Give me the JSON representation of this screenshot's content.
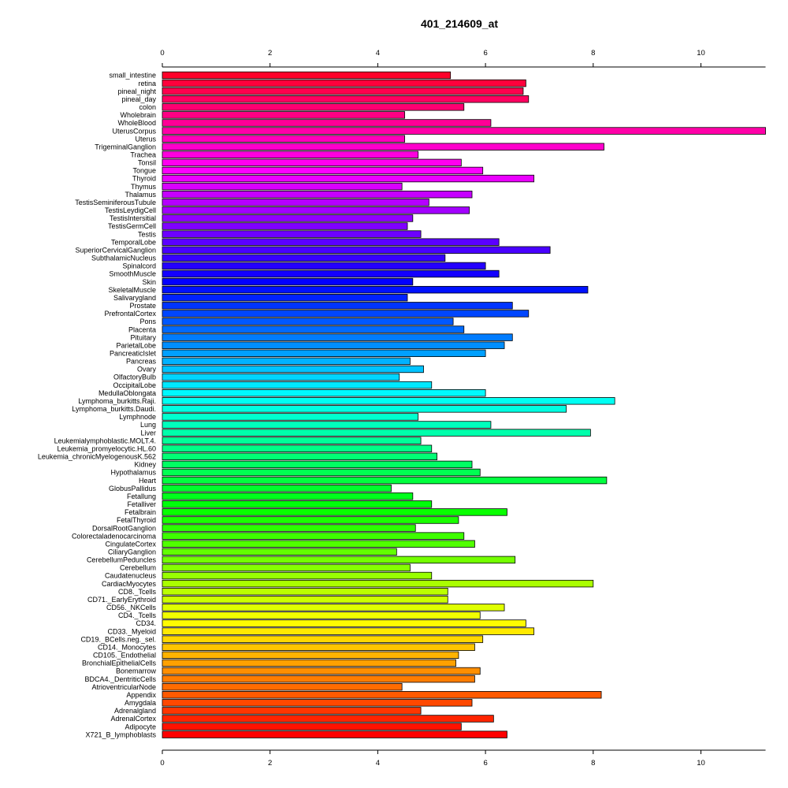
{
  "chart_data": {
    "type": "bar",
    "orientation": "horizontal",
    "title": "401_214609_at",
    "xlabel": "",
    "ylabel": "",
    "xlim": [
      0,
      11.2
    ],
    "ticks": [
      0,
      2,
      4,
      6,
      8,
      10
    ],
    "tick_labels": [
      "0",
      "2",
      "4",
      "6",
      "8",
      "10"
    ],
    "axes": [
      "top",
      "bottom"
    ],
    "grid": false,
    "legend": "none",
    "color_scheme": "rainbow",
    "categories": [
      "small_intestine",
      "retina",
      "pineal_night",
      "pineal_day",
      "colon",
      "Wholebrain",
      "WholeBlood",
      "UterusCorpus",
      "Uterus",
      "TrigeminalGanglion",
      "Trachea",
      "Tonsil",
      "Tongue",
      "Thyroid",
      "Thymus",
      "Thalamus",
      "TestisSeminiferousTubule",
      "TestisLeydigCell",
      "TestisIntersitial",
      "TestisGermCell",
      "Testis",
      "TemporalLobe",
      "SuperiorCervicalGanglion",
      "SubthalamicNucleus",
      "Spinalcord",
      "SmoothMuscle",
      "Skin",
      "SkeletalMuscle",
      "Salivarygland",
      "Prostate",
      "PrefrontalCortex",
      "Pons",
      "Placenta",
      "Pituitary",
      "ParietalLobe",
      "PancreaticIslet",
      "Pancreas",
      "Ovary",
      "OlfactoryBulb",
      "OccipitalLobe",
      "MedullaOblongata",
      "Lymphoma_burkitts.Raji.",
      "Lymphoma_burkitts.Daudi.",
      "Lymphnode",
      "Lung",
      "Liver",
      "Leukemialymphoblastic.MOLT.4.",
      "Leukemia_promyelocytic.HL.60",
      "Leukemia_chronicMyelogenousK.562",
      "Kidney",
      "Hypothalamus",
      "Heart",
      "GlobusPallidus",
      "Fetallung",
      "Fetalliver",
      "Fetalbrain",
      "FetalThyroid",
      "DorsalRootGanglion",
      "Colorectaladenocarcinoma",
      "CingulateCortex",
      "CiliaryGanglion",
      "CerebellumPeduncles",
      "Cerebellum",
      "Caudatenucleus",
      "CardiacMyocytes",
      "CD8._Tcells",
      "CD71._EarlyErythroid",
      "CD56._NKCells",
      "CD4._Tcells",
      "CD34.",
      "CD33._Myeloid",
      "CD19._BCells.neg._sel.",
      "CD14._Monocytes",
      "CD105._Endothelial",
      "BronchialEpithelialCells",
      "Bonemarrow",
      "BDCA4._DentriticCells",
      "AtrioventricularNode",
      "Appendix",
      "Amygdala",
      "Adrenalgland",
      "AdrenalCortex",
      "Adipocyte",
      "X721_B_lymphoblasts"
    ],
    "values": [
      5.35,
      6.75,
      6.7,
      6.8,
      5.6,
      4.5,
      6.1,
      11.2,
      4.5,
      8.2,
      4.75,
      5.55,
      5.95,
      6.9,
      4.45,
      5.75,
      4.95,
      5.7,
      4.65,
      4.55,
      4.8,
      6.25,
      7.2,
      5.25,
      6.0,
      6.25,
      4.65,
      7.9,
      4.55,
      6.5,
      6.8,
      5.4,
      5.6,
      6.5,
      6.35,
      6.0,
      4.6,
      4.85,
      4.4,
      5.0,
      6.0,
      8.4,
      7.5,
      4.75,
      6.1,
      7.95,
      4.8,
      5.0,
      5.1,
      5.75,
      5.9,
      8.25,
      4.25,
      4.65,
      5.0,
      6.4,
      5.5,
      4.7,
      5.6,
      5.8,
      4.35,
      6.55,
      4.6,
      5.0,
      8.0,
      5.3,
      5.3,
      6.35,
      5.9,
      6.75,
      6.9,
      5.95,
      5.8,
      5.5,
      5.45,
      5.9,
      5.8,
      4.45,
      8.15,
      5.75,
      4.8,
      6.15,
      5.55,
      6.4
    ]
  }
}
